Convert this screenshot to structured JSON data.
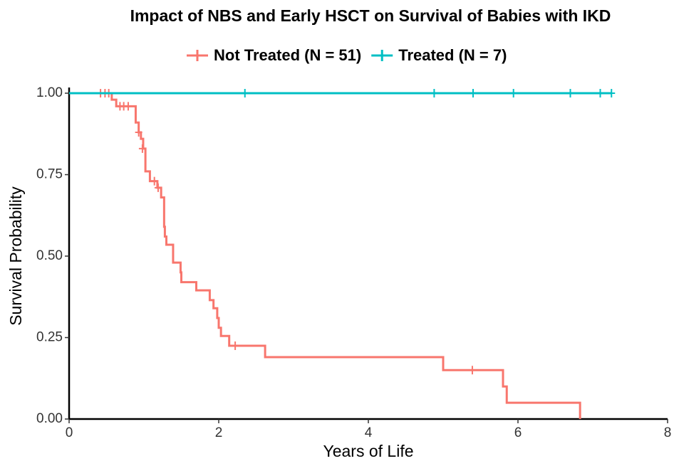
{
  "chart_data": {
    "type": "survival",
    "title": "Impact of NBS and Early HSCT on Survival of Babies with IKD",
    "x_label": "Years of Life",
    "y_label": "Survival Probability",
    "xlim": [
      0,
      8
    ],
    "xticks": [
      0,
      2,
      4,
      6,
      8
    ],
    "ylim": [
      0,
      1
    ],
    "yticks": [
      {
        "value": 0,
        "label": "0.00"
      },
      {
        "value": 0.25,
        "label": "0.25"
      },
      {
        "value": 0.5,
        "label": "0.50"
      },
      {
        "value": 0.75,
        "label": "0.75"
      },
      {
        "value": 1,
        "label": "1.00"
      }
    ],
    "series": [
      {
        "name": "Not Treated (N = 51)",
        "color": "#f8766d",
        "x": [
          0,
          0.57,
          0.63,
          0.89,
          0.93,
          0.96,
          0.99,
          1.02,
          1.08,
          1.18,
          1.23,
          1.27,
          1.28,
          1.3,
          1.39,
          1.49,
          1.5,
          1.7,
          1.88,
          1.93,
          1.98,
          2.0,
          2.03,
          2.14,
          2.62,
          5.0,
          5.8,
          5.85,
          6.83
        ],
        "values": [
          1.0,
          0.98,
          0.96,
          0.91,
          0.88,
          0.86,
          0.83,
          0.76,
          0.73,
          0.71,
          0.68,
          0.59,
          0.56,
          0.535,
          0.48,
          0.45,
          0.42,
          0.395,
          0.365,
          0.34,
          0.31,
          0.28,
          0.255,
          0.225,
          0.19,
          0.15,
          0.1,
          0.05,
          0.0
        ],
        "censor_x": [
          0.42,
          0.48,
          0.53,
          0.68,
          0.73,
          0.79,
          0.93,
          0.98,
          1.14,
          1.19,
          2.22,
          5.39
        ],
        "censor_values": [
          1.0,
          1.0,
          1.0,
          0.96,
          0.96,
          0.96,
          0.88,
          0.83,
          0.73,
          0.71,
          0.225,
          0.15
        ]
      },
      {
        "name": "Treated (N = 7)",
        "color": "#00bfc4",
        "x": [
          0,
          7.25
        ],
        "values": [
          1.0,
          1.0
        ],
        "censor_x": [
          2.35,
          4.88,
          5.4,
          5.94,
          6.7,
          7.1,
          7.25
        ],
        "censor_values": [
          1.0,
          1.0,
          1.0,
          1.0,
          1.0,
          1.0,
          1.0
        ]
      }
    ]
  }
}
